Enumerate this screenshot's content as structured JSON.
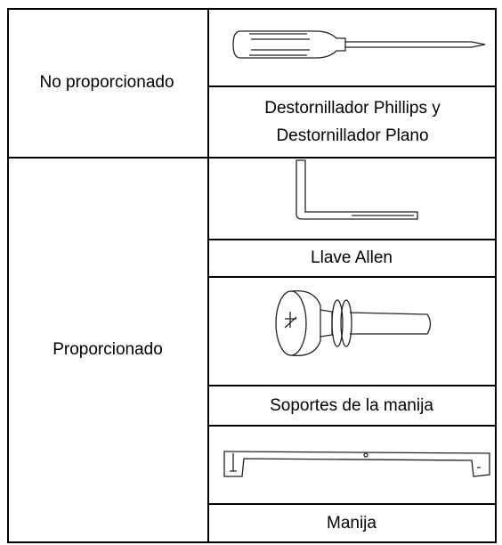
{
  "table": {
    "groups": [
      {
        "label": "No proporcionado",
        "items": [
          "Destornillador Phillips y Destornillador Plano"
        ]
      },
      {
        "label": "Proporcionado",
        "items": [
          "Llave Allen",
          "Soportes de la manija",
          "Manija"
        ]
      }
    ]
  }
}
